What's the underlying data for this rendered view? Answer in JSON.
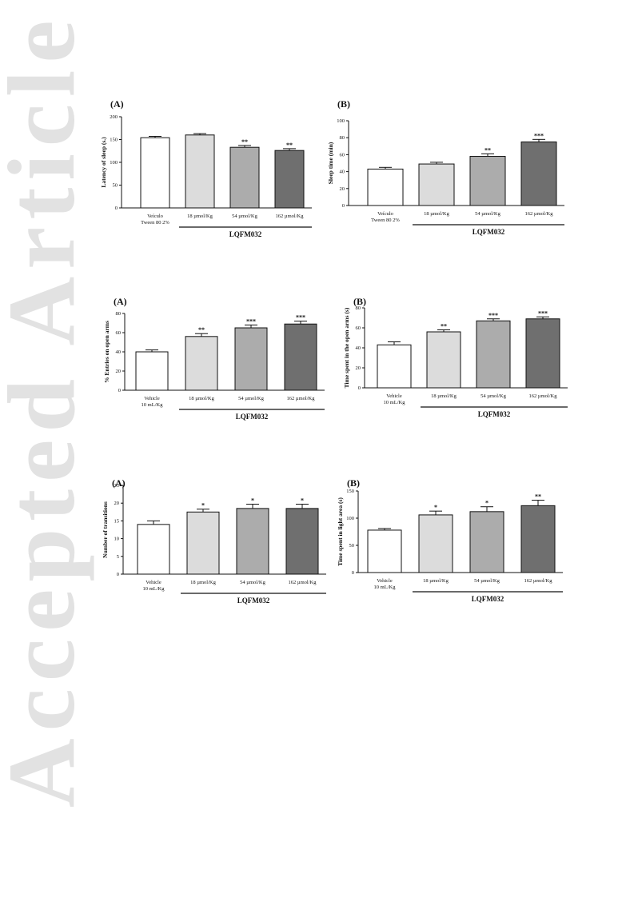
{
  "watermark": {
    "text": "Accepted Article",
    "color": "#e2e2e2"
  },
  "colors": {
    "vehicle": "#ffffff",
    "dose_18": "#dcdcdc",
    "dose_54": "#acacac",
    "dose_162": "#6f6f6f",
    "stroke": "#111111"
  },
  "chart_data": [
    {
      "type": "bar",
      "panel_label": "(A)",
      "ylabel": "Latency of sleep (s.)",
      "ylim": [
        0,
        200
      ],
      "yticks": [
        0,
        50,
        100,
        150,
        200
      ],
      "categories": [
        "Veículo Tween 80 2%",
        "18 µmol/Kg",
        "54 µmol/Kg",
        "162  µmol/Kg"
      ],
      "category_lines": [
        [
          "Veículo",
          "Tween 80 2%"
        ],
        [
          "18 µmol/Kg"
        ],
        [
          "54 µmol/Kg"
        ],
        [
          "162  µmol/Kg"
        ]
      ],
      "values": [
        154,
        160,
        133,
        126
      ],
      "errors": [
        3,
        3,
        4,
        4
      ],
      "significance": [
        "",
        "",
        "**",
        "**"
      ],
      "group_label": "LQFM032"
    },
    {
      "type": "bar",
      "panel_label": "(B)",
      "ylabel": "Sleep time (min)",
      "ylim": [
        0,
        100
      ],
      "yticks": [
        0,
        20,
        40,
        60,
        80,
        100
      ],
      "categories": [
        "Veículo Tween 80 2%",
        "18 µmol/Kg",
        "54 µmol/Kg",
        "162  µmol/Kg"
      ],
      "category_lines": [
        [
          "Veículo",
          "Tween 80 2%"
        ],
        [
          "18 µmol/Kg"
        ],
        [
          "54 µmol/Kg"
        ],
        [
          "162  µmol/Kg"
        ]
      ],
      "values": [
        43,
        49,
        58,
        75
      ],
      "errors": [
        2,
        2,
        3,
        3
      ],
      "significance": [
        "",
        "",
        "**",
        "***"
      ],
      "group_label": "LQFM032"
    },
    {
      "type": "bar",
      "panel_label": "(A)",
      "ylabel": "% Entries on open arms",
      "ylim": [
        0,
        80
      ],
      "yticks": [
        0,
        20,
        40,
        60,
        80
      ],
      "categories": [
        "Vehicle 10 mL/Kg",
        "18 µmol/Kg",
        "54 µmol/Kg",
        "162  µmol/Kg"
      ],
      "category_lines": [
        [
          "Vehicle",
          "10 mL/Kg"
        ],
        [
          "18 µmol/Kg"
        ],
        [
          "54 µmol/Kg"
        ],
        [
          "162  µmol/Kg"
        ]
      ],
      "values": [
        40,
        56,
        65,
        69
      ],
      "errors": [
        2,
        3,
        3,
        3
      ],
      "significance": [
        "",
        "**",
        "***",
        "***"
      ],
      "group_label": "LQFM032"
    },
    {
      "type": "bar",
      "panel_label": "(B)",
      "ylabel": "Time spent in the open arms (s)",
      "ylim": [
        0,
        80
      ],
      "yticks": [
        0,
        20,
        40,
        60,
        80
      ],
      "categories": [
        "Vehicle 10 mL/Kg",
        "18 µmol/Kg",
        "54 µmol/Kg",
        "162  µmol/Kg"
      ],
      "category_lines": [
        [
          "Vehicle",
          "10 mL/Kg"
        ],
        [
          "18 µmol/Kg"
        ],
        [
          "54 µmol/Kg"
        ],
        [
          "162  µmol/Kg"
        ]
      ],
      "values": [
        43,
        56,
        67,
        69
      ],
      "errors": [
        3,
        2,
        2,
        2
      ],
      "significance": [
        "",
        "**",
        "***",
        "***"
      ],
      "group_label": "LQFM032"
    },
    {
      "type": "bar",
      "panel_label": "(A)",
      "ylabel": "Number of transitions",
      "ylim": [
        0,
        25
      ],
      "yticks": [
        0,
        5,
        10,
        15,
        20,
        25
      ],
      "categories": [
        "Vehicle 10 mL/Kg",
        "18 µmol/Kg",
        "54 µmol/Kg",
        "162  µmol/Kg"
      ],
      "category_lines": [
        [
          "Vehicle",
          "10 mL/Kg"
        ],
        [
          "18 µmol/Kg"
        ],
        [
          "54 µmol/Kg"
        ],
        [
          "162  µmol/Kg"
        ]
      ],
      "values": [
        14,
        17.5,
        18.5,
        18.5
      ],
      "errors": [
        1,
        0.8,
        1.2,
        1.2
      ],
      "significance": [
        "",
        "*",
        "*",
        "*"
      ],
      "group_label": "LQFM032"
    },
    {
      "type": "bar",
      "panel_label": "(B)",
      "ylabel": "Time spent in light area (s)",
      "ylim": [
        0,
        150
      ],
      "yticks": [
        0,
        50,
        100,
        150
      ],
      "categories": [
        "Vehicle 10 mL/Kg",
        "18 µmol/Kg",
        "54 µmol/Kg",
        "162  µmol/Kg"
      ],
      "category_lines": [
        [
          "Vehicle",
          "10 mL/Kg"
        ],
        [
          "18 µmol/Kg"
        ],
        [
          "54 µmol/Kg"
        ],
        [
          "162  µmol/Kg"
        ]
      ],
      "values": [
        78,
        106,
        112,
        123
      ],
      "errors": [
        3,
        7,
        9,
        10
      ],
      "significance": [
        "",
        "*",
        "*",
        "**"
      ],
      "group_label": "LQFM032"
    }
  ]
}
